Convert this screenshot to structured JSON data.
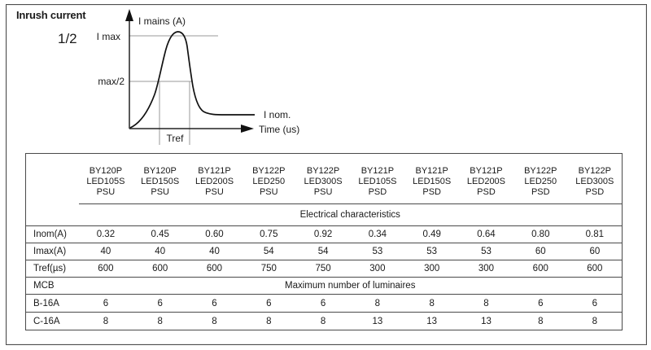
{
  "page": {
    "title": "Inrush current",
    "fraction_label": "1/2"
  },
  "graph": {
    "y_axis_label": "I mains (A)",
    "x_axis_label": "Time (us)",
    "imax_label": "I max",
    "half_max_label": "max/2",
    "inom_label": "I nom.",
    "tref_label": "Tref"
  },
  "table": {
    "columns": [
      {
        "line1": "BY120P",
        "line2": "LED105S",
        "line3": "PSU"
      },
      {
        "line1": "BY120P",
        "line2": "LED150S",
        "line3": "PSU"
      },
      {
        "line1": "BY121P",
        "line2": "LED200S",
        "line3": "PSU"
      },
      {
        "line1": "BY122P",
        "line2": "LED250",
        "line3": "PSU"
      },
      {
        "line1": "BY122P",
        "line2": "LED300S",
        "line3": "PSU"
      },
      {
        "line1": "BY121P",
        "line2": "LED105S",
        "line3": "PSD"
      },
      {
        "line1": "BY121P",
        "line2": "LED150S",
        "line3": "PSD"
      },
      {
        "line1": "BY121P",
        "line2": "LED200S",
        "line3": "PSD"
      },
      {
        "line1": "BY122P",
        "line2": "LED250",
        "line3": "PSD"
      },
      {
        "line1": "BY122P",
        "line2": "LED300S",
        "line3": "PSD"
      }
    ],
    "electrical_section_label": "Electrical characteristics",
    "electrical_rows": [
      {
        "label": "Inom(A)",
        "values": [
          "0.32",
          "0.45",
          "0.60",
          "0.75",
          "0.92",
          "0.34",
          "0.49",
          "0.64",
          "0.80",
          "0.81"
        ]
      },
      {
        "label": "Imax(A)",
        "values": [
          "40",
          "40",
          "40",
          "54",
          "54",
          "53",
          "53",
          "53",
          "60",
          "60"
        ]
      },
      {
        "label": "Tref(µs)",
        "values": [
          "600",
          "600",
          "600",
          "750",
          "750",
          "300",
          "300",
          "300",
          "600",
          "600"
        ]
      }
    ],
    "mcb_label": "MCB",
    "mcb_section_label": "Maximum number of luminaires",
    "mcb_rows": [
      {
        "label": "B-16A",
        "values": [
          "6",
          "6",
          "6",
          "6",
          "6",
          "8",
          "8",
          "8",
          "6",
          "6"
        ]
      },
      {
        "label": "C-16A",
        "values": [
          "8",
          "8",
          "8",
          "8",
          "8",
          "13",
          "13",
          "13",
          "8",
          "8"
        ]
      }
    ]
  }
}
